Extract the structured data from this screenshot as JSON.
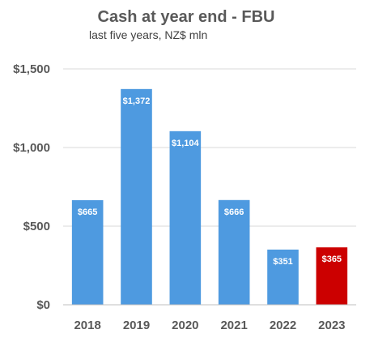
{
  "chart_data": {
    "type": "bar",
    "title": "Cash at year end - FBU",
    "subtitle": "last five years, NZ$ mln",
    "categories": [
      "2018",
      "2019",
      "2020",
      "2021",
      "2022",
      "2023"
    ],
    "values": [
      665,
      1372,
      1104,
      666,
      351,
      365
    ],
    "data_labels": [
      "$665",
      "$1,372",
      "$1,104",
      "$666",
      "$351",
      "$365"
    ],
    "ylim": [
      0,
      1500
    ],
    "yticks": [
      0,
      500,
      1000,
      1500
    ],
    "ytick_labels": [
      "$0",
      "$500",
      "$1,000",
      "$1,500"
    ],
    "xlabel": "",
    "ylabel": "",
    "grid": true,
    "colors": {
      "bar": "#4e9ae0",
      "highlight": "#cc0000",
      "highlight_index": 5
    }
  }
}
